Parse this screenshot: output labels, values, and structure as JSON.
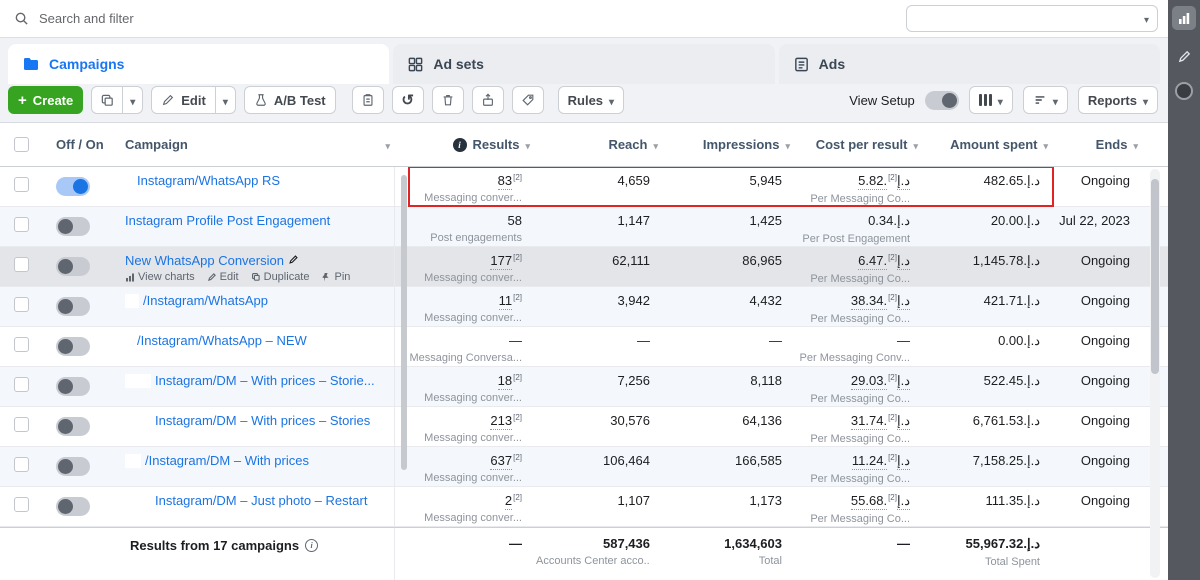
{
  "colors": {
    "accent_blue": "#1877f2",
    "link_blue": "#1b74e4",
    "create_green": "#36a420",
    "highlight_red": "#e02424",
    "toggle_on_blue": "#1b74e4"
  },
  "topbar": {
    "search_placeholder": "Search and filter"
  },
  "tabs": [
    {
      "label": "Campaigns"
    },
    {
      "label": "Ad sets"
    },
    {
      "label": "Ads"
    }
  ],
  "toolbar": {
    "create_label": "Create",
    "edit_label": "Edit",
    "ab_test_label": "A/B Test",
    "rules_label": "Rules",
    "view_setup_label": "View Setup",
    "reports_label": "Reports"
  },
  "table": {
    "columns": [
      "Off / On",
      "Campaign",
      "Results",
      "Reach",
      "Impressions",
      "Cost per result",
      "Amount spent",
      "Ends"
    ],
    "rows": [
      {
        "name": "Instagram/WhatsApp RS",
        "on": true,
        "redact": 8,
        "highlight": true,
        "results": "83",
        "results_sup": "[2]",
        "results_sub": "Messaging conver...",
        "reach": "4,659",
        "impressions": "5,945",
        "cpr": "5.82.د.إ",
        "cpr_sup": "[2]",
        "cpr_sub": "Per Messaging Co...",
        "spent": "482.65.د.إ",
        "ends": "Ongoing"
      },
      {
        "name": "Instagram Profile Post Engagement",
        "on": false,
        "results": "58",
        "results_sub": "Post engagements",
        "reach": "1,147",
        "impressions": "1,425",
        "cpr": "0.34.د.إ",
        "cpr_sub": "Per Post Engagement",
        "spent": "20.00.د.إ",
        "ends": "Jul 22, 2023"
      },
      {
        "name": "New WhatsApp Conversion",
        "on": false,
        "selected": true,
        "name_edit": true,
        "actions": [
          "View charts",
          "Edit",
          "Duplicate",
          "Pin"
        ],
        "results": "177",
        "results_sup": "[2]",
        "results_sub": "Messaging conver...",
        "reach": "62,111",
        "impressions": "86,965",
        "cpr": "6.47.د.إ",
        "cpr_sup": "[2]",
        "cpr_sub": "Per Messaging Co...",
        "spent": "1,145.78.د.إ",
        "ends": "Ongoing"
      },
      {
        "name": "/Instagram/WhatsApp",
        "on": false,
        "redact": 14,
        "results": "11",
        "results_sup": "[2]",
        "results_sub": "Messaging conver...",
        "reach": "3,942",
        "impressions": "4,432",
        "cpr": "38.34.د.إ",
        "cpr_sup": "[2]",
        "cpr_sub": "Per Messaging Co...",
        "spent": "421.71.د.إ",
        "ends": "Ongoing"
      },
      {
        "name": "/Instagram/WhatsApp – NEW",
        "on": false,
        "redact": 8,
        "results": "—",
        "results_sub": "Messaging Conversa...",
        "reach": "—",
        "impressions": "—",
        "cpr": "—",
        "cpr_sub": "Per Messaging Conv...",
        "spent": "0.00.د.إ",
        "ends": "Ongoing"
      },
      {
        "name": "Instagram/DM – With prices – Storie...",
        "on": false,
        "redact": 26,
        "results": "18",
        "results_sup": "[2]",
        "results_sub": "Messaging conver...",
        "reach": "7,256",
        "impressions": "8,118",
        "cpr": "29.03.د.إ",
        "cpr_sup": "[2]",
        "cpr_sub": "Per Messaging Co...",
        "spent": "522.45.د.إ",
        "ends": "Ongoing"
      },
      {
        "name": "Instagram/DM – With prices – Stories",
        "on": false,
        "redact": 26,
        "results": "213",
        "results_sup": "[2]",
        "results_sub": "Messaging conver...",
        "reach": "30,576",
        "impressions": "64,136",
        "cpr": "31.74.د.إ",
        "cpr_sup": "[2]",
        "cpr_sub": "Per Messaging Co...",
        "spent": "6,761.53.د.إ",
        "ends": "Ongoing"
      },
      {
        "name": "/Instagram/DM – With prices",
        "on": false,
        "redact": 16,
        "results": "637",
        "results_sup": "[2]",
        "results_sub": "Messaging conver...",
        "reach": "106,464",
        "impressions": "166,585",
        "cpr": "11.24.د.إ",
        "cpr_sup": "[2]",
        "cpr_sub": "Per Messaging Co...",
        "spent": "7,158.25.د.إ",
        "ends": "Ongoing"
      },
      {
        "name": "Instagram/DM – Just photo – Restart",
        "on": false,
        "redact": 26,
        "results": "2",
        "results_sup": "[2]",
        "results_sub": "Messaging conver...",
        "reach": "1,107",
        "impressions": "1,173",
        "cpr": "55.68.د.إ",
        "cpr_sup": "[2]",
        "cpr_sub": "Per Messaging Co...",
        "spent": "111.35.د.إ",
        "ends": "Ongoing"
      }
    ],
    "footer": {
      "label": "Results from 17 campaigns",
      "results": "—",
      "reach": "587,436",
      "reach_sub": "Accounts Center acco...",
      "impressions": "1,634,603",
      "impressions_sub": "Total",
      "cpr": "—",
      "spent": "55,967.32.د.إ",
      "spent_sub": "Total Spent"
    }
  }
}
